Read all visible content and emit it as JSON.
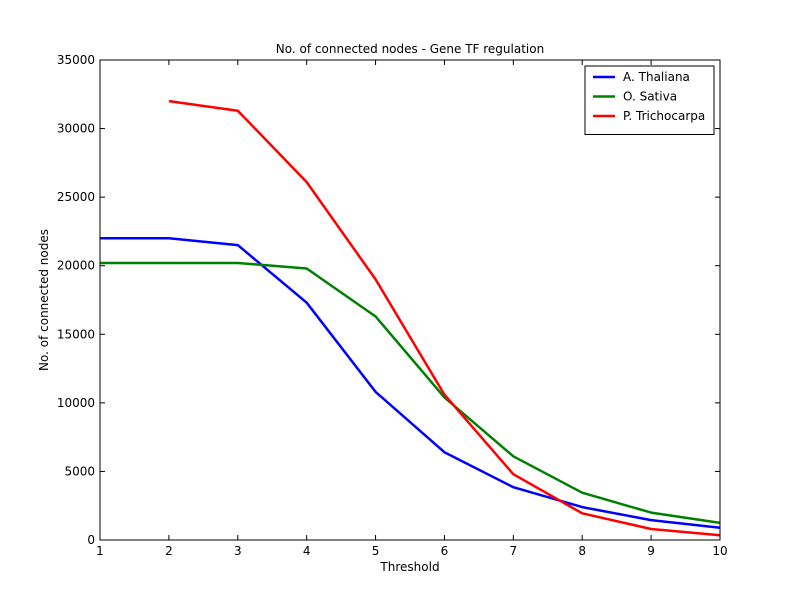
{
  "chart_data": {
    "type": "line",
    "title": "No. of connected nodes - Gene TF regulation",
    "xlabel": "Threshold",
    "ylabel": "No. of connected nodes",
    "xlim": [
      1,
      10
    ],
    "ylim": [
      0,
      35000
    ],
    "xticks": [
      1,
      2,
      3,
      4,
      5,
      6,
      7,
      8,
      9,
      10
    ],
    "yticks": [
      0,
      5000,
      10000,
      15000,
      20000,
      25000,
      30000,
      35000
    ],
    "grid": false,
    "legend_position": "top-right",
    "series": [
      {
        "name": "A. Thaliana",
        "color": "#0000ff",
        "x": [
          1,
          2,
          3,
          4,
          5,
          6,
          7,
          8,
          9,
          10
        ],
        "y": [
          22000,
          22000,
          21500,
          17300,
          10800,
          6400,
          3850,
          2400,
          1450,
          900
        ]
      },
      {
        "name": "O. Sativa",
        "color": "#008000",
        "x": [
          1,
          2,
          3,
          4,
          5,
          6,
          7,
          8,
          9,
          10
        ],
        "y": [
          20200,
          20200,
          20200,
          19800,
          16300,
          10400,
          6100,
          3450,
          2000,
          1250
        ]
      },
      {
        "name": "P. Trichocarpa",
        "color": "#ff0000",
        "x": [
          2,
          3,
          4,
          5,
          6,
          7,
          8,
          9,
          10
        ],
        "y": [
          32000,
          31300,
          26100,
          19000,
          10600,
          4800,
          1950,
          800,
          350
        ]
      }
    ]
  }
}
